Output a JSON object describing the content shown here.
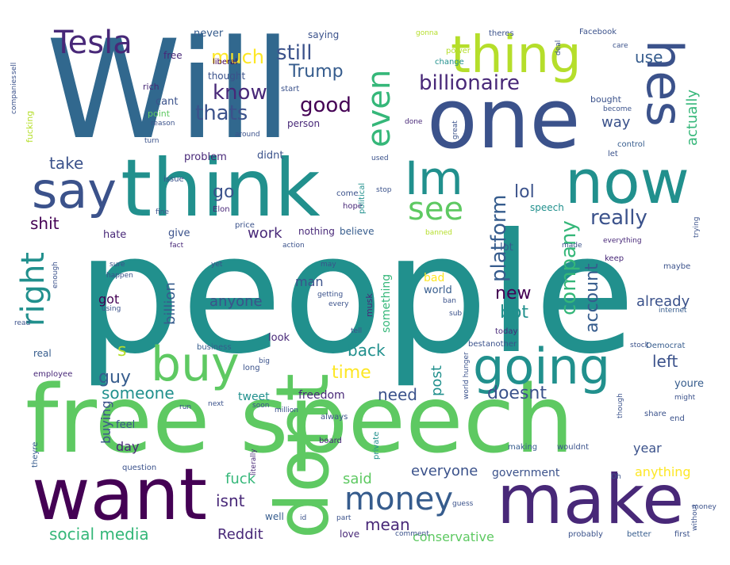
{
  "palette": {
    "teal": "#21908d",
    "blue": "#31688e",
    "navy": "#3b528b",
    "purple": "#482878",
    "dark-purple": "#440154",
    "green": "#5ec962",
    "light-green": "#7ad151",
    "lime": "#b5de2b",
    "yellow": "#fde725",
    "sea": "#35b779",
    "slate": "#365c8d"
  },
  "words": [
    {
      "text": "people",
      "color": "teal"
    },
    {
      "text": "Will",
      "color": "blue"
    },
    {
      "text": "free speech",
      "color": "green"
    },
    {
      "text": "one",
      "color": "navy"
    },
    {
      "text": "think",
      "color": "teal"
    },
    {
      "text": "now",
      "color": "teal"
    },
    {
      "text": "want",
      "color": "dark-purple"
    },
    {
      "text": "make",
      "color": "purple"
    },
    {
      "text": "dont",
      "color": "green"
    },
    {
      "text": "thing",
      "color": "lime"
    },
    {
      "text": "hes",
      "color": "navy"
    },
    {
      "text": "say",
      "color": "navy"
    },
    {
      "text": "Im",
      "color": "teal"
    },
    {
      "text": "going",
      "color": "teal"
    },
    {
      "text": "buy",
      "color": "green"
    },
    {
      "text": "Tesla",
      "color": "purple"
    },
    {
      "text": "money",
      "color": "slate"
    },
    {
      "text": "right",
      "color": "teal"
    },
    {
      "text": "even",
      "color": "sea"
    },
    {
      "text": "see",
      "color": "green"
    },
    {
      "text": "billionaire",
      "color": "purple"
    },
    {
      "text": "still",
      "color": "navy"
    },
    {
      "text": "much",
      "color": "yellow"
    },
    {
      "text": "know",
      "color": "purple"
    },
    {
      "text": "thats",
      "color": "navy"
    },
    {
      "text": "good",
      "color": "dark-purple"
    },
    {
      "text": "Trump",
      "color": "slate"
    },
    {
      "text": "company",
      "color": "sea"
    },
    {
      "text": "platform",
      "color": "slate"
    },
    {
      "text": "really",
      "color": "navy"
    },
    {
      "text": "shit",
      "color": "dark-purple"
    },
    {
      "text": "work",
      "color": "purple"
    },
    {
      "text": "take",
      "color": "navy"
    },
    {
      "text": "go",
      "color": "navy"
    },
    {
      "text": "lol",
      "color": "navy"
    },
    {
      "text": "new",
      "color": "dark-purple"
    },
    {
      "text": "bot",
      "color": "teal"
    },
    {
      "text": "account",
      "color": "slate"
    },
    {
      "text": "anyone",
      "color": "navy"
    },
    {
      "text": "already",
      "color": "navy"
    },
    {
      "text": "guy",
      "color": "slate"
    },
    {
      "text": "someone",
      "color": "teal"
    },
    {
      "text": "time",
      "color": "yellow"
    },
    {
      "text": "need",
      "color": "navy"
    },
    {
      "text": "doesnt",
      "color": "navy"
    },
    {
      "text": "left",
      "color": "navy"
    },
    {
      "text": "back",
      "color": "teal"
    },
    {
      "text": "post",
      "color": "teal"
    },
    {
      "text": "actually",
      "color": "sea"
    },
    {
      "text": "way",
      "color": "navy"
    },
    {
      "text": "use",
      "color": "slate"
    },
    {
      "text": "isnt",
      "color": "purple"
    },
    {
      "text": "fuck",
      "color": "sea"
    },
    {
      "text": "said",
      "color": "green"
    },
    {
      "text": "mean",
      "color": "purple"
    },
    {
      "text": "social media",
      "color": "sea"
    },
    {
      "text": "Reddit",
      "color": "purple"
    },
    {
      "text": "everyone",
      "color": "navy"
    },
    {
      "text": "government",
      "color": "navy"
    },
    {
      "text": "anything",
      "color": "yellow"
    },
    {
      "text": "conservative",
      "color": "green"
    },
    {
      "text": "billion",
      "color": "slate"
    },
    {
      "text": "something",
      "color": "sea"
    },
    {
      "text": "man",
      "color": "navy"
    },
    {
      "text": "got",
      "color": "dark-purple"
    },
    {
      "text": "buying",
      "color": "navy"
    },
    {
      "text": "day",
      "color": "purple"
    },
    {
      "text": "year",
      "color": "navy"
    },
    {
      "text": "youre",
      "color": "slate"
    },
    {
      "text": "tweet",
      "color": "teal"
    },
    {
      "text": "freedom",
      "color": "purple"
    },
    {
      "text": "hate",
      "color": "purple"
    },
    {
      "text": "give",
      "color": "navy"
    },
    {
      "text": "problem",
      "color": "purple"
    },
    {
      "text": "didnt",
      "color": "navy"
    },
    {
      "text": "cant",
      "color": "navy"
    },
    {
      "text": "never",
      "color": "slate"
    },
    {
      "text": "free",
      "color": "purple"
    },
    {
      "text": "thought",
      "color": "navy"
    },
    {
      "text": "saying",
      "color": "navy"
    },
    {
      "text": "person",
      "color": "purple"
    },
    {
      "text": "look",
      "color": "purple"
    },
    {
      "text": "real",
      "color": "slate"
    },
    {
      "text": "well",
      "color": "slate"
    },
    {
      "text": "love",
      "color": "purple"
    },
    {
      "text": "bad",
      "color": "yellow"
    },
    {
      "text": "world",
      "color": "slate"
    },
    {
      "text": "nothing",
      "color": "purple"
    },
    {
      "text": "believe",
      "color": "slate"
    },
    {
      "text": "lot",
      "color": "slate"
    },
    {
      "text": "speech",
      "color": "teal"
    },
    {
      "text": "Facebook",
      "color": "navy"
    },
    {
      "text": "rich",
      "color": "purple"
    },
    {
      "text": "point",
      "color": "green"
    },
    {
      "text": "fucking",
      "color": "lime"
    },
    {
      "text": "musk",
      "color": "purple"
    },
    {
      "text": "Elon",
      "color": "purple"
    },
    {
      "text": "liberal",
      "color": "dark-purple"
    },
    {
      "text": "bought",
      "color": "navy"
    },
    {
      "text": "change",
      "color": "teal"
    },
    {
      "text": "power",
      "color": "lime"
    },
    {
      "text": "theres",
      "color": "navy"
    },
    {
      "text": "start",
      "color": "navy"
    },
    {
      "text": "control",
      "color": "slate"
    },
    {
      "text": "let",
      "color": "navy"
    },
    {
      "text": "issue",
      "color": "navy"
    },
    {
      "text": "hope",
      "color": "purple"
    },
    {
      "text": "come",
      "color": "navy"
    },
    {
      "text": "political",
      "color": "teal"
    },
    {
      "text": "price",
      "color": "navy"
    },
    {
      "text": "fine",
      "color": "navy"
    },
    {
      "text": "fact",
      "color": "purple"
    },
    {
      "text": "keep",
      "color": "purple"
    },
    {
      "text": "maybe",
      "color": "navy"
    },
    {
      "text": "trying",
      "color": "navy"
    },
    {
      "text": "everything",
      "color": "purple"
    },
    {
      "text": "internet",
      "color": "slate"
    },
    {
      "text": "today",
      "color": "purple"
    },
    {
      "text": "best",
      "color": "navy"
    },
    {
      "text": "another",
      "color": "navy"
    },
    {
      "text": "Democrat",
      "color": "slate"
    },
    {
      "text": "business",
      "color": "slate"
    },
    {
      "text": "employee",
      "color": "purple"
    },
    {
      "text": "long",
      "color": "navy"
    },
    {
      "text": "next",
      "color": "navy"
    },
    {
      "text": "soon",
      "color": "navy"
    },
    {
      "text": "always",
      "color": "navy"
    },
    {
      "text": "board",
      "color": "purple"
    },
    {
      "text": "making",
      "color": "slate"
    },
    {
      "text": "wouldnt",
      "color": "navy"
    },
    {
      "text": "share",
      "color": "navy"
    },
    {
      "text": "end",
      "color": "navy"
    },
    {
      "text": "question",
      "color": "navy"
    },
    {
      "text": "literally",
      "color": "purple"
    },
    {
      "text": "private",
      "color": "teal"
    },
    {
      "text": "theyre",
      "color": "slate"
    },
    {
      "text": "feel",
      "color": "navy"
    },
    {
      "text": "probably",
      "color": "navy"
    },
    {
      "text": "better",
      "color": "slate"
    },
    {
      "text": "first",
      "color": "navy"
    },
    {
      "text": "comment",
      "color": "navy"
    },
    {
      "text": "part",
      "color": "navy"
    },
    {
      "text": "done",
      "color": "purple"
    },
    {
      "text": "great",
      "color": "navy"
    },
    {
      "text": "reason",
      "color": "navy"
    },
    {
      "text": "around",
      "color": "navy"
    },
    {
      "text": "turn",
      "color": "navy"
    },
    {
      "text": "gonna",
      "color": "lime"
    },
    {
      "text": "deal",
      "color": "navy"
    },
    {
      "text": "care",
      "color": "navy"
    },
    {
      "text": "become",
      "color": "navy"
    },
    {
      "text": "used",
      "color": "navy"
    },
    {
      "text": "stop",
      "color": "navy"
    },
    {
      "text": "sure",
      "color": "navy"
    },
    {
      "text": "happen",
      "color": "navy"
    },
    {
      "text": "enough",
      "color": "navy"
    },
    {
      "text": "using",
      "color": "navy"
    },
    {
      "text": "yet",
      "color": "navy"
    },
    {
      "text": "may",
      "color": "navy"
    },
    {
      "text": "getting",
      "color": "navy"
    },
    {
      "text": "every",
      "color": "navy"
    },
    {
      "text": "sub",
      "color": "navy"
    },
    {
      "text": "ban",
      "color": "navy"
    },
    {
      "text": "tell",
      "color": "navy"
    },
    {
      "text": "big",
      "color": "navy"
    },
    {
      "text": "run",
      "color": "navy"
    },
    {
      "text": "million",
      "color": "navy"
    },
    {
      "text": "might",
      "color": "navy"
    },
    {
      "text": "though",
      "color": "navy"
    },
    {
      "text": "without",
      "color": "navy"
    },
    {
      "text": "world hunger",
      "color": "navy"
    },
    {
      "text": "stock",
      "color": "navy"
    },
    {
      "text": "banned",
      "color": "lime"
    },
    {
      "text": "action",
      "color": "navy"
    },
    {
      "text": "made",
      "color": "navy"
    },
    {
      "text": "sell",
      "color": "navy"
    },
    {
      "text": "companies",
      "color": "navy"
    },
    {
      "text": "read",
      "color": "navy"
    },
    {
      "text": "Oh",
      "color": "navy"
    },
    {
      "text": "id",
      "color": "navy"
    },
    {
      "text": "guess",
      "color": "navy"
    },
    {
      "text": "money",
      "color": "navy"
    },
    {
      "text": "s",
      "color": "lime"
    }
  ]
}
